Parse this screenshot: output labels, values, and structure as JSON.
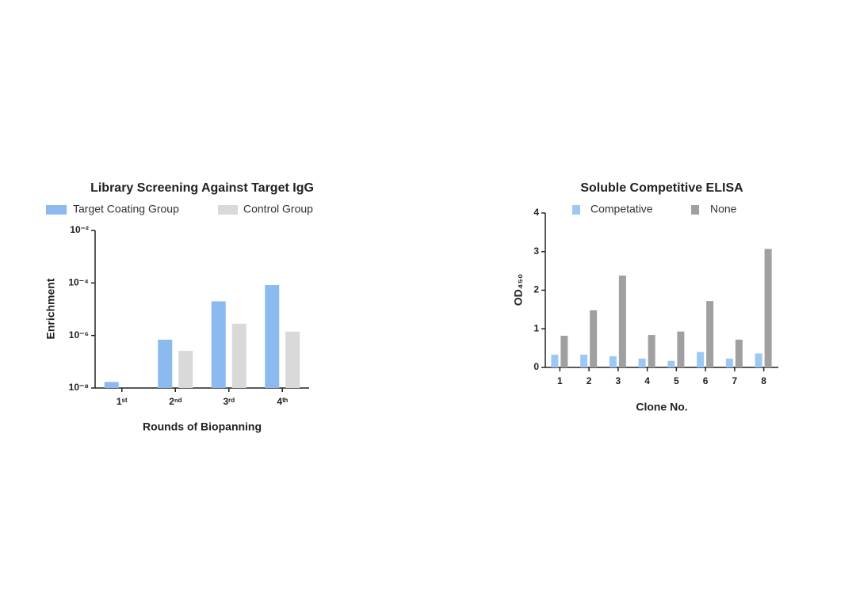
{
  "chart_data": [
    {
      "type": "bar",
      "title": "Library Screening Against Target IgG",
      "log_scale": true,
      "x_label": "Rounds of Biopanning",
      "y_label": "Enrichment",
      "categories": [
        "1ˢᵗ",
        "2ⁿᵈ",
        "3ʳᵈ",
        "4ᵗʰ"
      ],
      "series": [
        {
          "name": "Target Coating Group",
          "color": "#8cbaf0",
          "values": [
            1.7e-08,
            6.9e-07,
            2e-05,
            8.3e-05
          ]
        },
        {
          "name": "Control Group",
          "color": "#d9d9d9",
          "values": [
            null,
            2.6e-07,
            2.8e-06,
            1.4e-06
          ]
        }
      ],
      "ylim": [
        1e-08,
        0.01
      ],
      "yticks": [
        {
          "value": 1e-08,
          "label": "10⁻⁸"
        },
        {
          "value": 1e-06,
          "label": "10⁻⁶"
        },
        {
          "value": 0.0001,
          "label": "10⁻⁴"
        },
        {
          "value": 0.01,
          "label": "10⁻²"
        }
      ]
    },
    {
      "type": "bar",
      "title": "Soluble Competitive ELISA",
      "log_scale": false,
      "x_label": "Clone No.",
      "y_label": "OD₄₅₀",
      "categories": [
        "1",
        "2",
        "3",
        "4",
        "5",
        "6",
        "7",
        "8"
      ],
      "series": [
        {
          "name": "Competative",
          "color": "#9cc8f5",
          "values": [
            0.33,
            0.33,
            0.29,
            0.23,
            0.17,
            0.4,
            0.23,
            0.36
          ]
        },
        {
          "name": "None",
          "color": "#a0a0a2",
          "values": [
            0.82,
            1.48,
            2.38,
            0.84,
            0.93,
            1.72,
            0.72,
            3.07
          ]
        }
      ],
      "ylim": [
        0,
        4
      ],
      "yticks": [
        0,
        1,
        2,
        3,
        4
      ]
    }
  ]
}
